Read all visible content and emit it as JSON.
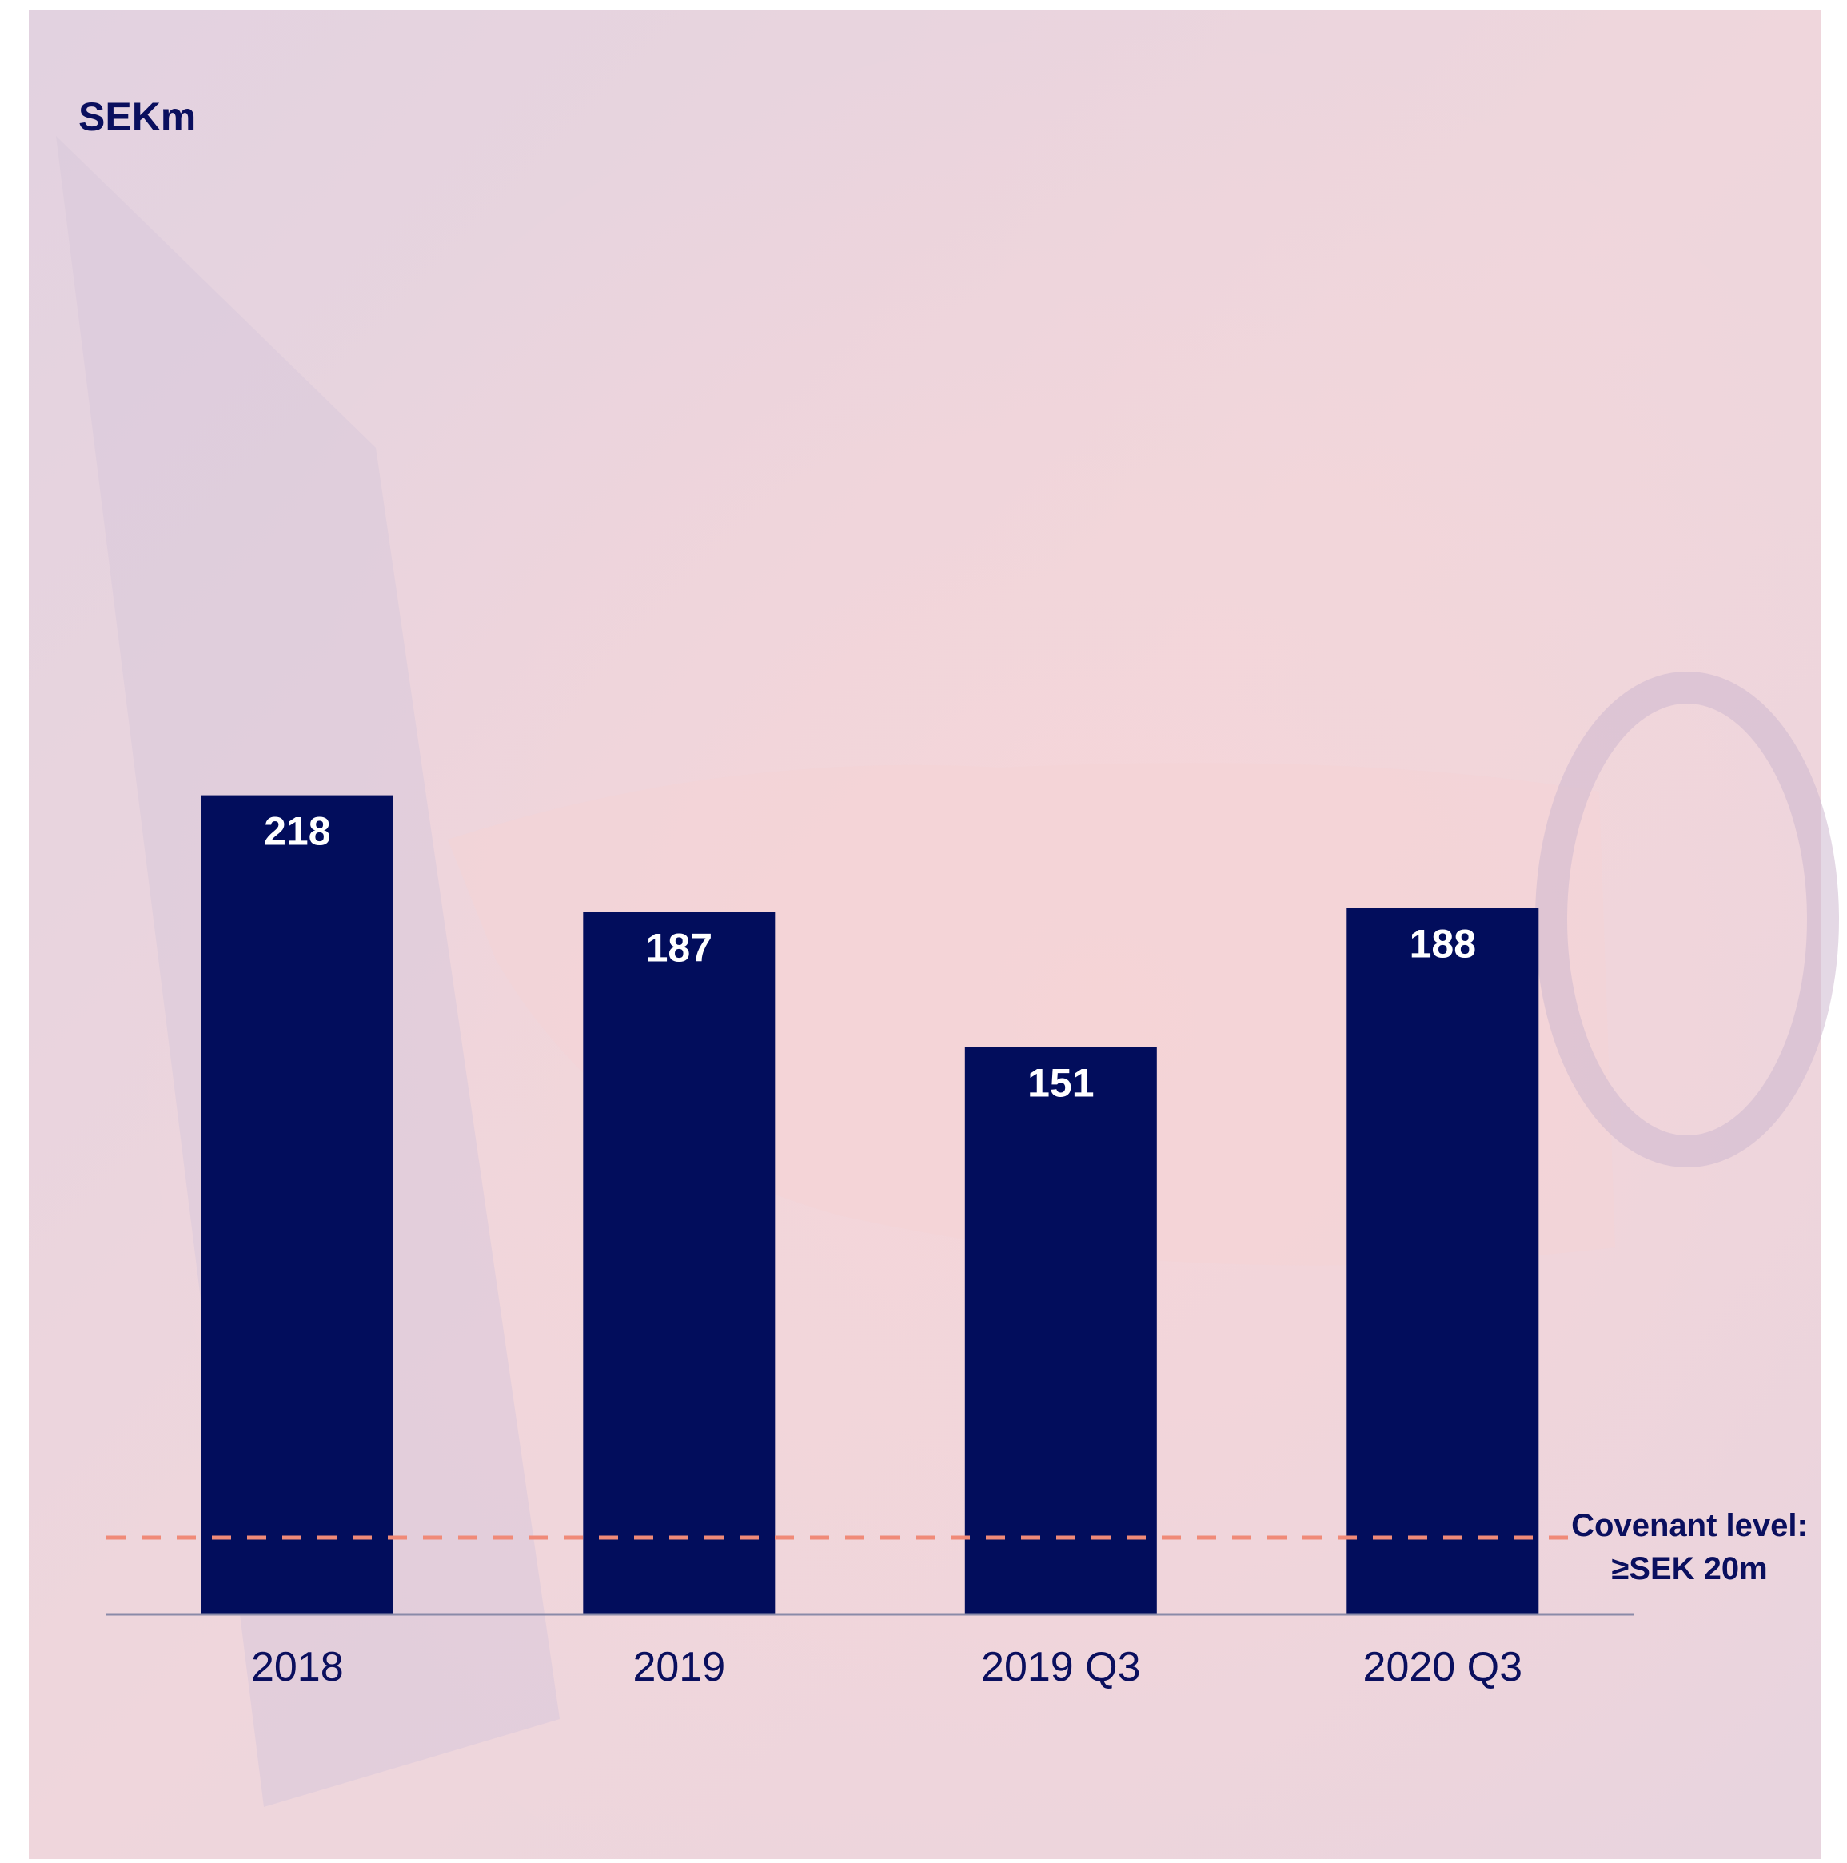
{
  "chart_data": {
    "type": "bar",
    "unit_label": "SEKm",
    "categories": [
      "2018",
      "2019",
      "2019 Q3",
      "2020 Q3"
    ],
    "values": [
      218,
      187,
      151,
      188
    ],
    "data_labels": [
      "218",
      "187",
      "151",
      "188"
    ],
    "reference_line": {
      "value": 20,
      "label_line1": "Covenant level:",
      "label_line2": "≥SEK 20m",
      "style": "dashed",
      "color": "#F08A78"
    },
    "colors": {
      "bar": "#020D5C",
      "text": "#0A0F5E",
      "axis": "#8A8AA8",
      "background": "#E6D3DE",
      "background_accent": "#F2D4D8"
    },
    "legend": "none",
    "grid": false
  }
}
